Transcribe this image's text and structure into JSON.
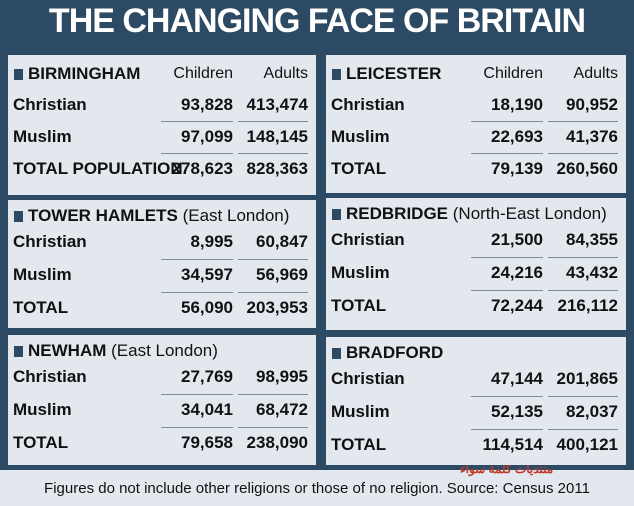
{
  "title": "THE CHANGING FACE OF BRITAIN",
  "panels": [
    {
      "name": "BIRMINGHAM",
      "columns": [
        "Children",
        "Adults"
      ],
      "rows": [
        [
          "Christian",
          "93,828",
          "413,474"
        ],
        [
          "Muslim",
          "97,099",
          "148,145"
        ],
        [
          "TOTAL POPULATION",
          "278,623",
          "828,363"
        ]
      ]
    },
    {
      "name": "LEICESTER",
      "columns": [
        "Children",
        "Adults"
      ],
      "rows": [
        [
          "Christian",
          "18,190",
          "90,952"
        ],
        [
          "Muslim",
          "22,693",
          "41,376"
        ],
        [
          "TOTAL",
          "79,139",
          "260,560"
        ]
      ]
    },
    {
      "name": "TOWER HAMLETS",
      "region": "(East London)",
      "rows": [
        [
          "Christian",
          "8,995",
          "60,847"
        ],
        [
          "Muslim",
          "34,597",
          "56,969"
        ],
        [
          "TOTAL",
          "56,090",
          "203,953"
        ]
      ]
    },
    {
      "name": "REDBRIDGE",
      "region": "(North-East London)",
      "rows": [
        [
          "Christian",
          "21,500",
          "84,355"
        ],
        [
          "Muslim",
          "24,216",
          "43,432"
        ],
        [
          "TOTAL",
          "72,244",
          "216,112"
        ]
      ]
    },
    {
      "name": "NEWHAM",
      "region": "(East London)",
      "rows": [
        [
          "Christian",
          "27,769",
          "98,995"
        ],
        [
          "Muslim",
          "34,041",
          "68,472"
        ],
        [
          "TOTAL",
          "79,658",
          "238,090"
        ]
      ]
    },
    {
      "name": "BRADFORD",
      "rows": [
        [
          "Christian",
          "47,144",
          "201,865"
        ],
        [
          "Muslim",
          "52,135",
          "82,037"
        ],
        [
          "TOTAL",
          "114,514",
          "400,121"
        ]
      ]
    }
  ],
  "footer": "Figures do not include other religions or those of no religion. Source: Census 2011",
  "watermark": "منتديات كلمة سواء"
}
